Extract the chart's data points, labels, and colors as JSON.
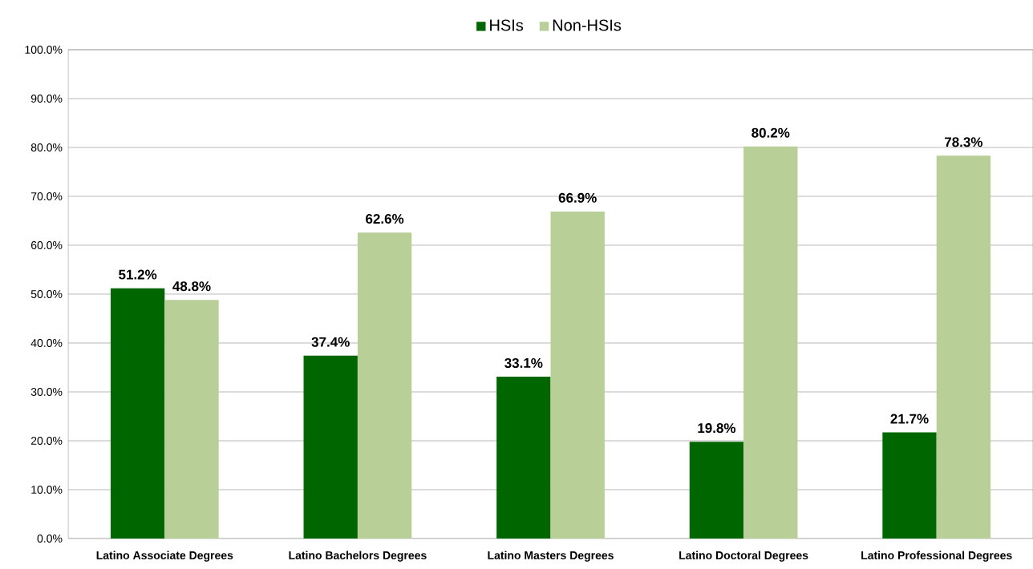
{
  "chart_data": {
    "type": "bar",
    "categories": [
      "Latino Associate Degrees",
      "Latino Bachelors Degrees",
      "Latino Masters Degrees",
      "Latino Doctoral Degrees",
      "Latino Professional Degrees"
    ],
    "series": [
      {
        "name": "HSIs",
        "color": "#006600",
        "values": [
          51.2,
          37.4,
          33.1,
          19.8,
          21.7
        ],
        "value_labels": [
          "51.2%",
          "37.4%",
          "33.1%",
          "19.8%",
          "21.7%"
        ]
      },
      {
        "name": "Non-HSIs",
        "color": "#b8cf97",
        "values": [
          48.8,
          62.6,
          66.9,
          80.2,
          78.3
        ],
        "value_labels": [
          "48.8%",
          "62.6%",
          "66.9%",
          "80.2%",
          "78.3%"
        ]
      }
    ],
    "ylim": [
      0,
      100
    ],
    "yticks": [
      {
        "value": 0,
        "label": "0.0%"
      },
      {
        "value": 10,
        "label": "10.0%"
      },
      {
        "value": 20,
        "label": "20.0%"
      },
      {
        "value": 30,
        "label": "30.0%"
      },
      {
        "value": 40,
        "label": "40.0%"
      },
      {
        "value": 50,
        "label": "50.0%"
      },
      {
        "value": 60,
        "label": "60.0%"
      },
      {
        "value": 70,
        "label": "70.0%"
      },
      {
        "value": 80,
        "label": "80.0%"
      },
      {
        "value": 90,
        "label": "90.0%"
      },
      {
        "value": 100,
        "label": "100.0%"
      }
    ],
    "grid": "y",
    "legend": "top"
  }
}
